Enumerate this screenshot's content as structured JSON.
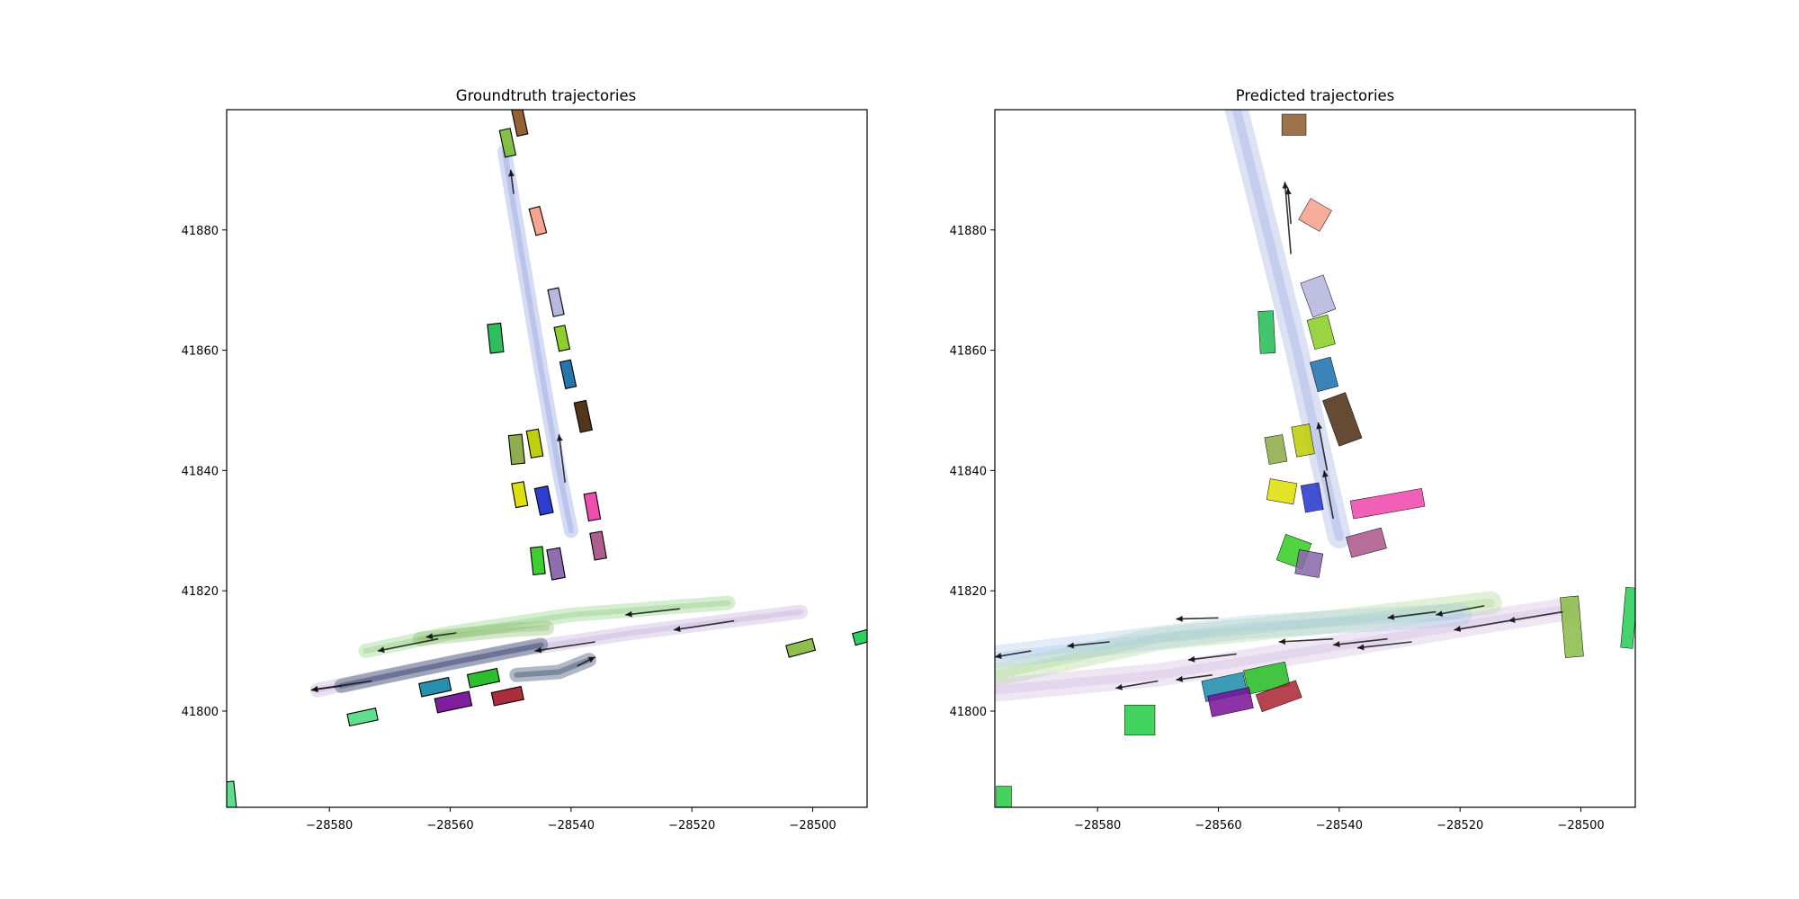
{
  "chart_data": [
    {
      "type": "scatter",
      "title": "Groundtruth trajectories",
      "xlabel": "",
      "ylabel": "",
      "xlim": [
        -28597,
        -28491
      ],
      "ylim": [
        41784,
        41900
      ],
      "x_ticks": [
        "−28580",
        "−28560",
        "−28540",
        "−28520",
        "−28500"
      ],
      "y_ticks": [
        "41800",
        "41820",
        "41840",
        "41860",
        "41880"
      ],
      "grid": false,
      "agents": [
        {
          "x": -28548.5,
          "y": 41898.0,
          "w": 1.8,
          "h": 4.5,
          "angle": -12,
          "color": "#8b5a2b"
        },
        {
          "x": -28550.5,
          "y": 41894.5,
          "w": 1.8,
          "h": 4.5,
          "angle": -12,
          "color": "#7dbe3c"
        },
        {
          "x": -28545.5,
          "y": 41881.5,
          "w": 1.8,
          "h": 4.5,
          "angle": -15,
          "color": "#f4a08a"
        },
        {
          "x": -28542.5,
          "y": 41868.0,
          "w": 1.8,
          "h": 4.5,
          "angle": -12,
          "color": "#b4b4dc"
        },
        {
          "x": -28552.5,
          "y": 41862.0,
          "w": 2.2,
          "h": 4.8,
          "angle": -6,
          "color": "#22bb55"
        },
        {
          "x": -28541.5,
          "y": 41862.0,
          "w": 1.8,
          "h": 4.0,
          "angle": -12,
          "color": "#88cc22"
        },
        {
          "x": -28540.5,
          "y": 41856.0,
          "w": 1.8,
          "h": 4.5,
          "angle": -12,
          "color": "#1a6faa"
        },
        {
          "x": -28538.0,
          "y": 41849.0,
          "w": 2.0,
          "h": 5.0,
          "angle": -12,
          "color": "#4a2a10"
        },
        {
          "x": -28549.0,
          "y": 41843.5,
          "w": 2.2,
          "h": 4.8,
          "angle": -6,
          "color": "#88aa44"
        },
        {
          "x": -28546.0,
          "y": 41844.5,
          "w": 2.0,
          "h": 4.5,
          "angle": -10,
          "color": "#bbcc00"
        },
        {
          "x": -28548.5,
          "y": 41836.0,
          "w": 2.0,
          "h": 4.0,
          "angle": -10,
          "color": "#dddd00"
        },
        {
          "x": -28544.5,
          "y": 41835.0,
          "w": 2.2,
          "h": 4.5,
          "angle": -12,
          "color": "#2233cc"
        },
        {
          "x": -28536.5,
          "y": 41834.0,
          "w": 2.0,
          "h": 4.5,
          "angle": -10,
          "color": "#ee44aa"
        },
        {
          "x": -28535.5,
          "y": 41827.5,
          "w": 2.0,
          "h": 4.5,
          "angle": -10,
          "color": "#aa5588"
        },
        {
          "x": -28545.5,
          "y": 41825.0,
          "w": 2.0,
          "h": 4.5,
          "angle": -6,
          "color": "#33cc22"
        },
        {
          "x": -28542.5,
          "y": 41824.5,
          "w": 2.2,
          "h": 5.0,
          "angle": -10,
          "color": "#8866aa"
        },
        {
          "x": -28502.0,
          "y": 41810.5,
          "w": 4.5,
          "h": 2.0,
          "angle": -15,
          "color": "#88bb44"
        },
        {
          "x": -28491.0,
          "y": 41812.5,
          "w": 4.5,
          "h": 2.0,
          "angle": -15,
          "color": "#22cc55"
        },
        {
          "x": -28562.5,
          "y": 41804.0,
          "w": 5.0,
          "h": 2.2,
          "angle": -12,
          "color": "#1a8aaa"
        },
        {
          "x": -28554.5,
          "y": 41805.5,
          "w": 5.0,
          "h": 2.2,
          "angle": -12,
          "color": "#22bb22"
        },
        {
          "x": -28559.5,
          "y": 41801.5,
          "w": 5.8,
          "h": 2.4,
          "angle": -12,
          "color": "#771199"
        },
        {
          "x": -28550.5,
          "y": 41802.5,
          "w": 5.0,
          "h": 2.2,
          "angle": -12,
          "color": "#aa2233"
        },
        {
          "x": -28574.5,
          "y": 41799.0,
          "w": 4.8,
          "h": 2.0,
          "angle": -12,
          "color": "#55dd88"
        },
        {
          "x": -28596.5,
          "y": 41786.0,
          "w": 1.8,
          "h": 4.5,
          "angle": -6,
          "color": "#55dd88"
        }
      ],
      "trajectories": [
        {
          "color": "#8899dd",
          "points": [
            [
              -28551,
              41893
            ],
            [
              -28548,
              41875
            ],
            [
              -28545,
              41857
            ],
            [
              -28542,
              41840
            ],
            [
              -28540,
              41830
            ]
          ],
          "arrows": [
            [
              -28549.5,
              41886,
              -28550,
              41890
            ],
            [
              -28541,
              41838,
              -28542,
              41846
            ]
          ]
        },
        {
          "color": "#88cc77",
          "points": [
            [
              -28574,
              41810
            ],
            [
              -28560,
              41813
            ],
            [
              -28540,
              41816
            ],
            [
              -28514,
              41818
            ]
          ],
          "arrows": [
            [
              -28522,
              41817,
              -28531,
              41816
            ],
            [
              -28562,
              41812,
              -28572,
              41810
            ]
          ]
        },
        {
          "color": "#c0a8d8",
          "points": [
            [
              -28582,
              41803.5
            ],
            [
              -28570,
              41806
            ],
            [
              -28550,
              41810
            ],
            [
              -28530,
              41813
            ],
            [
              -28502,
              41816.5
            ]
          ],
          "arrows": [
            [
              -28513,
              41815,
              -28523,
              41813.5
            ],
            [
              -28536,
              41811.5,
              -28546,
              41810
            ],
            [
              -28573,
              41805,
              -28583,
              41803.5
            ]
          ]
        },
        {
          "color": "#1a3355",
          "points": [
            [
              -28578,
              41804.2
            ],
            [
              -28560,
              41808
            ],
            [
              -28545,
              41811
            ]
          ],
          "arrows": [
            [
              -28578,
              41804.2,
              -28583,
              41803.5
            ]
          ]
        },
        {
          "color": "#1a3355",
          "points": [
            [
              -28549,
              41806
            ],
            [
              -28542,
              41806.5
            ],
            [
              -28537,
              41808.5
            ]
          ],
          "arrows": [
            [
              -28539,
              41807.5,
              -28536,
              41809
            ]
          ]
        },
        {
          "color": "#88bb66",
          "points": [
            [
              -28565,
              41812
            ],
            [
              -28550,
              41813.5
            ],
            [
              -28544,
              41813.8
            ]
          ],
          "arrows": [
            [
              -28559,
              41813,
              -28564,
              41812.3
            ]
          ]
        }
      ]
    },
    {
      "type": "scatter",
      "title": "Predicted trajectories",
      "xlabel": "",
      "ylabel": "",
      "xlim": [
        -28597,
        -28491
      ],
      "ylim": [
        41784,
        41900
      ],
      "x_ticks": [
        "−28580",
        "−28560",
        "−28540",
        "−28520",
        "−28500"
      ],
      "y_ticks": [
        "41800",
        "41820",
        "41840",
        "41860",
        "41880"
      ],
      "grid": false,
      "agents": [
        {
          "x": -28547.5,
          "y": 41897.5,
          "w": 4.0,
          "h": 3.5,
          "angle": 0,
          "color": "#8b5a2b"
        },
        {
          "x": -28544.0,
          "y": 41882.5,
          "w": 4.0,
          "h": 4.0,
          "angle": 30,
          "color": "#f4a08a"
        },
        {
          "x": -28543.5,
          "y": 41869.0,
          "w": 4.0,
          "h": 6.0,
          "angle": -20,
          "color": "#b4b4dc"
        },
        {
          "x": -28552.0,
          "y": 41863.0,
          "w": 2.5,
          "h": 7.0,
          "angle": -3,
          "color": "#22bb55"
        },
        {
          "x": -28543.0,
          "y": 41863.0,
          "w": 3.5,
          "h": 5.0,
          "angle": -15,
          "color": "#88cc22"
        },
        {
          "x": -28542.5,
          "y": 41856.0,
          "w": 3.5,
          "h": 5.0,
          "angle": -15,
          "color": "#1a6faa"
        },
        {
          "x": -28539.5,
          "y": 41848.5,
          "w": 4.0,
          "h": 8.0,
          "angle": -20,
          "color": "#4a2a10"
        },
        {
          "x": -28550.5,
          "y": 41843.5,
          "w": 3.0,
          "h": 4.5,
          "angle": -10,
          "color": "#88aa44"
        },
        {
          "x": -28546.0,
          "y": 41845.0,
          "w": 3.0,
          "h": 5.0,
          "angle": -10,
          "color": "#bbcc00"
        },
        {
          "x": -28549.5,
          "y": 41836.5,
          "w": 4.5,
          "h": 3.5,
          "angle": 10,
          "color": "#dddd00"
        },
        {
          "x": -28544.5,
          "y": 41835.5,
          "w": 3.0,
          "h": 4.5,
          "angle": -10,
          "color": "#2233cc"
        },
        {
          "x": -28532.0,
          "y": 41834.5,
          "w": 12.0,
          "h": 3.0,
          "angle": -10,
          "color": "#ee44aa"
        },
        {
          "x": -28535.5,
          "y": 41828.0,
          "w": 6.0,
          "h": 3.5,
          "angle": -15,
          "color": "#aa5588"
        },
        {
          "x": -28547.5,
          "y": 41826.5,
          "w": 4.5,
          "h": 4.5,
          "angle": 20,
          "color": "#33cc22"
        },
        {
          "x": -28545.0,
          "y": 41824.5,
          "w": 4.0,
          "h": 4.0,
          "angle": 10,
          "color": "#8866aa"
        },
        {
          "x": -28501.5,
          "y": 41814.0,
          "w": 3.0,
          "h": 10.0,
          "angle": -5,
          "color": "#88bb44"
        },
        {
          "x": -28492.0,
          "y": 41815.5,
          "w": 2.0,
          "h": 10.0,
          "angle": 5,
          "color": "#22cc55"
        },
        {
          "x": -28559.0,
          "y": 41804.0,
          "w": 7.0,
          "h": 3.5,
          "angle": -12,
          "color": "#1a8aaa"
        },
        {
          "x": -28552.0,
          "y": 41805.5,
          "w": 7.0,
          "h": 4.0,
          "angle": -12,
          "color": "#22bb22"
        },
        {
          "x": -28558.0,
          "y": 41801.5,
          "w": 7.0,
          "h": 3.5,
          "angle": -12,
          "color": "#771199"
        },
        {
          "x": -28550.0,
          "y": 41802.5,
          "w": 7.0,
          "h": 3.0,
          "angle": -20,
          "color": "#aa2233"
        },
        {
          "x": -28573.0,
          "y": 41798.5,
          "w": 5.0,
          "h": 5.0,
          "angle": 0,
          "color": "#22cc44"
        },
        {
          "x": -28595.5,
          "y": 41785.5,
          "w": 2.5,
          "h": 4.0,
          "angle": 0,
          "color": "#22cc44"
        }
      ],
      "trajectories": [
        {
          "color": "#9aaae0",
          "points": [
            [
              -28557,
              41900
            ],
            [
              -28552,
              41880
            ],
            [
              -28547,
              41860
            ],
            [
              -28543,
              41842
            ],
            [
              -28540,
              41829
            ]
          ],
          "arrows": [
            [
              -28548,
              41876,
              -28549,
              41888
            ],
            [
              -28548,
              41881,
              -28548.5,
              41887
            ],
            [
              -28541,
              41832,
              -28542.5,
              41840
            ],
            [
              -28542,
              41840,
              -28543.5,
              41848
            ]
          ]
        },
        {
          "color": "#a8d890",
          "points": [
            [
              -28597,
              41806
            ],
            [
              -28570,
              41812
            ],
            [
              -28540,
              41815
            ],
            [
              -28515,
              41818
            ]
          ],
          "arrows": [
            [
              -28516,
              41817.5,
              -28524,
              41816
            ],
            [
              -28524,
              41816.5,
              -28532,
              41815.5
            ],
            [
              -28560,
              41815.5,
              -28567,
              41815.3
            ]
          ]
        },
        {
          "color": "#d0b8e0",
          "points": [
            [
              -28597,
              41803.5
            ],
            [
              -28570,
              41806
            ],
            [
              -28545,
              41810
            ],
            [
              -28515,
              41815
            ],
            [
              -28502,
              41817
            ]
          ],
          "arrows": [
            [
              -28503,
              41816.5,
              -28512,
              41815
            ],
            [
              -28512,
              41815,
              -28521,
              41813.5
            ],
            [
              -28532,
              41812,
              -28541,
              41811
            ],
            [
              -28557,
              41809.5,
              -28565,
              41808.5
            ],
            [
              -28561,
              41806,
              -28567,
              41805.2
            ],
            [
              -28570,
              41805,
              -28577,
              41803.8
            ]
          ]
        },
        {
          "color": "#a8c8e8",
          "points": [
            [
              -28597,
              41809
            ],
            [
              -28580,
              41811
            ],
            [
              -28555,
              41814
            ],
            [
              -28520,
              41816
            ]
          ],
          "arrows": [
            [
              -28591,
              41810,
              -28597,
              41809
            ],
            [
              -28578,
              41811.5,
              -28585,
              41810.8
            ],
            [
              -28541,
              41812,
              -28550,
              41811.5
            ],
            [
              -28528,
              41811.5,
              -28537,
              41810.5
            ]
          ]
        }
      ]
    }
  ]
}
